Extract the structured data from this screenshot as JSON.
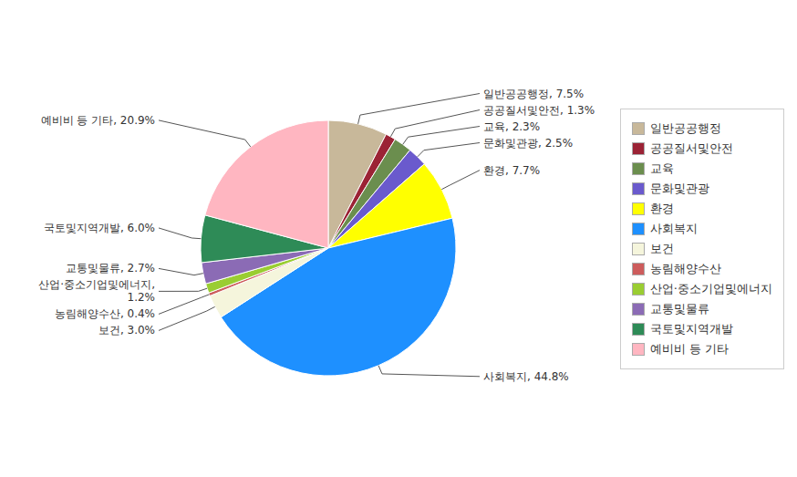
{
  "chart_data": {
    "type": "pie",
    "categories": [
      "일반공공행정",
      "공공질서및안전",
      "교육",
      "문화및관광",
      "환경",
      "사회복지",
      "보건",
      "농림해양수산",
      "산업·중소기업및에너지",
      "교통및물류",
      "국토및지역개발",
      "예비비 등 기타"
    ],
    "values": [
      7.5,
      1.3,
      2.3,
      2.5,
      7.7,
      44.8,
      3.0,
      0.4,
      1.2,
      2.7,
      6.0,
      20.9
    ],
    "value_labels": [
      "일반공공행정, 7.5%",
      "공공질서및안전, 1.3%",
      "교육, 2.3%",
      "문화및관광, 2.5%",
      "환경, 7.7%",
      "사회복지, 44.8%",
      "보건, 3.0%",
      "농림해양수산, 0.4%",
      "산업·중소기업및에너지,\n1.2%",
      "교통및물류, 2.7%",
      "국토및지역개발, 6.0%",
      "예비비 등 기타, 20.9%"
    ],
    "colors": [
      "#C8B89A",
      "#9B2335",
      "#6B8E4E",
      "#6A5ACD",
      "#FFFF00",
      "#1E90FF",
      "#F5F5DC",
      "#CD5C5C",
      "#9ACD32",
      "#8B6BB5",
      "#2E8B57",
      "#FFB6C1"
    ],
    "legend": "right",
    "data_labels": true
  }
}
